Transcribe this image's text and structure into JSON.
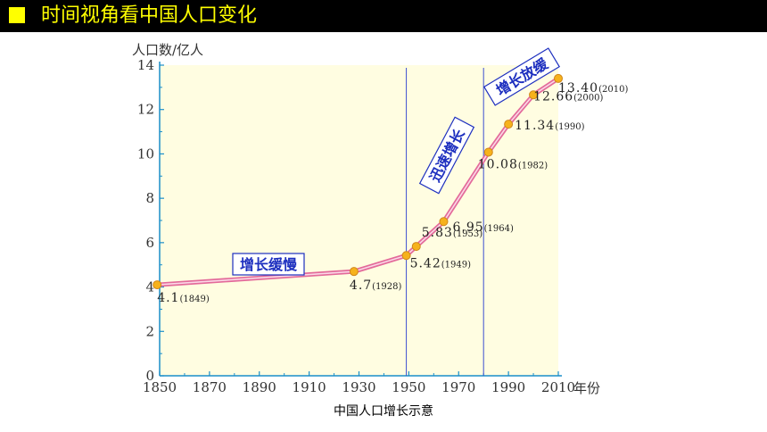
{
  "header": {
    "title": "时间视角看中国人口变化",
    "accent_color": "#ffff00",
    "bar_color": "#000000"
  },
  "chart_data": {
    "type": "line",
    "title": "中国人口增长示意",
    "xlabel": "年份",
    "ylabel": "人口数/亿人",
    "xlim": [
      1850,
      2010
    ],
    "ylim": [
      0,
      14
    ],
    "x_ticks": [
      1850,
      1870,
      1890,
      1910,
      1930,
      1950,
      1970,
      1990,
      2010
    ],
    "y_ticks": [
      0,
      2,
      4,
      6,
      8,
      10,
      12,
      14
    ],
    "series": [
      {
        "x": [
          1849,
          1928,
          1949,
          1953,
          1964,
          1982,
          1990,
          2000,
          2010
        ],
        "y": [
          4.1,
          4.7,
          5.42,
          5.83,
          6.95,
          10.08,
          11.34,
          12.66,
          13.4
        ],
        "labels": [
          {
            "value": "4.1",
            "year": "(1849)"
          },
          {
            "value": "4.7",
            "year": "(1928)"
          },
          {
            "value": "5.42",
            "year": "(1949)"
          },
          {
            "value": "5.83",
            "year": "(1953)"
          },
          {
            "value": "6.95",
            "year": "(1964)"
          },
          {
            "value": "10.08",
            "year": "(1982)"
          },
          {
            "value": "11.34",
            "year": "(1990)"
          },
          {
            "value": "12.66",
            "year": "(2000)"
          },
          {
            "value": "13.40",
            "year": "(2010)"
          }
        ]
      }
    ],
    "dividers": [
      1949,
      1980
    ],
    "annotations": [
      {
        "text": "增长缓慢"
      },
      {
        "text": "迅速增长"
      },
      {
        "text": "增长放缓"
      }
    ],
    "grid": false,
    "background_color": "#fffde1",
    "line_color": "#e36a9a",
    "marker_color": "#f6b21c",
    "divider_color": "#3c4fd1",
    "annotation_color": "#1d2fbf"
  }
}
